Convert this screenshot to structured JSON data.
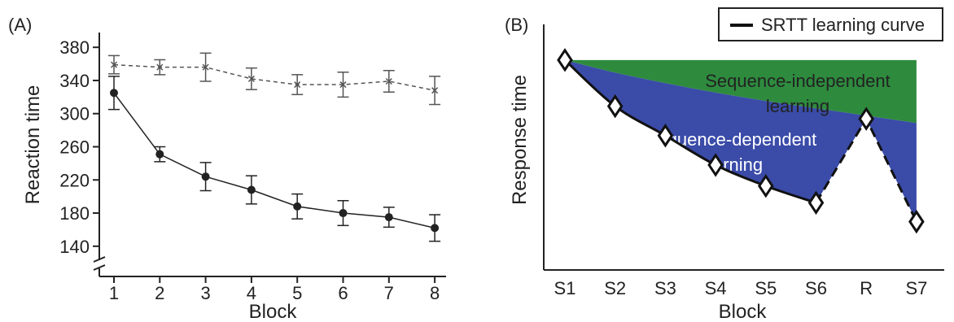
{
  "chart_data": [
    {
      "panel_label": "(A)",
      "type": "line",
      "xlabel": "Block",
      "ylabel": "Reaction time",
      "categories": [
        "1",
        "2",
        "3",
        "4",
        "5",
        "6",
        "7",
        "8"
      ],
      "yticks": [
        140,
        180,
        220,
        260,
        300,
        340,
        380
      ],
      "ylim": [
        130,
        390
      ],
      "axis_break": true,
      "grid": false,
      "series": [
        {
          "style": "dashed",
          "marker": "x",
          "color": "#555555",
          "values": [
            359,
            356,
            356,
            342,
            335,
            335,
            339,
            328
          ],
          "errors": [
            11,
            9,
            17,
            13,
            12,
            15,
            13,
            17
          ]
        },
        {
          "style": "solid",
          "marker": "filled-circle",
          "color": "#222222",
          "values": [
            325,
            251,
            224,
            208,
            188,
            180,
            175,
            162
          ],
          "errors": [
            20,
            9,
            17,
            17,
            15,
            15,
            12,
            16
          ]
        }
      ]
    },
    {
      "panel_label": "(B)",
      "type": "line",
      "xlabel": "Block",
      "ylabel": "Response time",
      "categories": [
        "S1",
        "S2",
        "S3",
        "S4",
        "S5",
        "S6",
        "R",
        "S7"
      ],
      "legend": {
        "label": "SRTT learning curve",
        "position": "top-right"
      },
      "values": [
        10.0,
        7.8,
        6.4,
        5.0,
        4.0,
        3.2,
        7.2,
        2.3
      ],
      "ylim": [
        0,
        11
      ],
      "baseline_level": 10.0,
      "independent_boundary": [
        10.0,
        9.4,
        8.9,
        8.45,
        8.05,
        7.7,
        7.35,
        7.0
      ],
      "regions": [
        {
          "label_lines": [
            "Sequence-independent",
            "learning"
          ],
          "color": "#2e8b3e"
        },
        {
          "label_lines": [
            "Sequence-dependent",
            "learning"
          ],
          "color": "#3a4ba8"
        }
      ]
    }
  ]
}
